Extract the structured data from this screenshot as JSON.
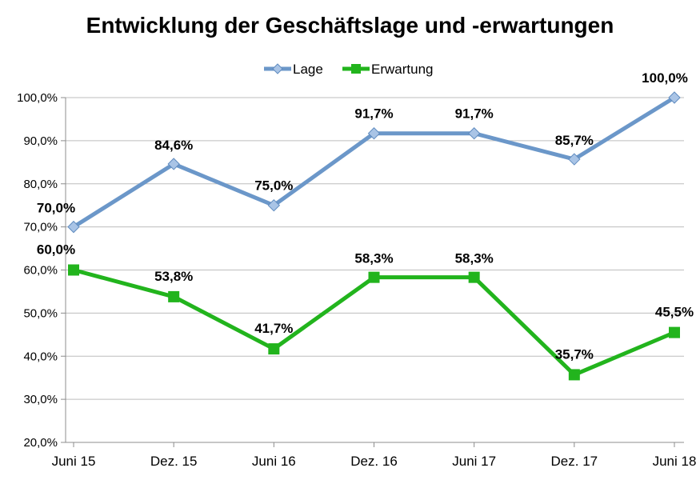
{
  "chart_data": {
    "type": "line",
    "title": "Entwicklung der Geschäftslage und -erwartungen",
    "categories": [
      "Juni 15",
      "Dez. 15",
      "Juni 16",
      "Dez. 16",
      "Juni 17",
      "Dez. 17",
      "Juni 18"
    ],
    "series": [
      {
        "name": "Lage",
        "values": [
          70.0,
          84.6,
          75.0,
          91.7,
          91.7,
          85.7,
          100.0
        ],
        "labels": [
          "70,0%",
          "84,6%",
          "75,0%",
          "91,7%",
          "91,7%",
          "85,7%",
          "100,0%"
        ],
        "color": "#6b97c9",
        "marker": "diamond"
      },
      {
        "name": "Erwartung",
        "values": [
          60.0,
          53.8,
          41.7,
          58.3,
          58.3,
          35.7,
          45.5
        ],
        "labels": [
          "60,0%",
          "53,8%",
          "41,7%",
          "58,3%",
          "58,3%",
          "35,7%",
          "45,5%"
        ],
        "color": "#22b41d",
        "marker": "square"
      }
    ],
    "ylim": [
      20,
      100
    ],
    "yticks": [
      "20,0%",
      "30,0%",
      "40,0%",
      "50,0%",
      "60,0%",
      "70,0%",
      "80,0%",
      "90,0%",
      "100,0%"
    ],
    "grid": true,
    "legend": "top-center"
  }
}
